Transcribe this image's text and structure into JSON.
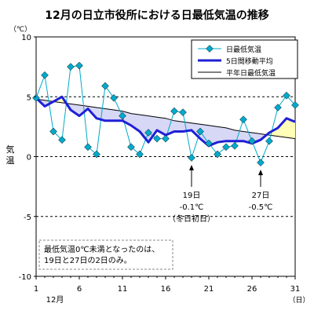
{
  "chart_data": {
    "type": "line",
    "title": "12月の日立市役所における日最低気温の推移",
    "unit_label": "（℃）",
    "ylabel": "気温",
    "xlabel_month": "12月",
    "xlabel_unit": "（日）",
    "x": [
      1,
      2,
      3,
      4,
      5,
      6,
      7,
      8,
      9,
      10,
      11,
      12,
      13,
      14,
      15,
      16,
      17,
      18,
      19,
      20,
      21,
      22,
      23,
      24,
      25,
      26,
      27,
      28,
      29,
      30,
      31
    ],
    "ylim": [
      -10,
      10
    ],
    "y_ticks": [
      10,
      5,
      0,
      -5,
      -10
    ],
    "x_ticks": [
      1,
      6,
      11,
      16,
      21,
      26,
      31
    ],
    "dashed_lines": [
      5,
      0,
      -5
    ],
    "series": [
      {
        "name": "日最低気温",
        "color": "#00aacc",
        "marker": "diamond",
        "values": [
          4.9,
          6.8,
          2.1,
          1.4,
          7.5,
          7.6,
          0.8,
          0.2,
          5.9,
          4.9,
          3.4,
          0.8,
          0.2,
          2.0,
          1.5,
          1.5,
          3.8,
          3.7,
          -0.1,
          2.1,
          1.1,
          0.2,
          0.8,
          0.9,
          3.1,
          1.3,
          -0.5,
          1.3,
          4.1,
          5.1,
          4.3
        ]
      },
      {
        "name": "5日間移動平均",
        "color": "#1f1fd6",
        "values": [
          4.9,
          4.2,
          4.6,
          5.0,
          3.9,
          3.4,
          4.0,
          3.2,
          3.0,
          3.0,
          3.0,
          2.6,
          2.1,
          1.2,
          2.2,
          1.8,
          2.1,
          2.1,
          2.2,
          1.5,
          0.9,
          1.2,
          1.3,
          1.3,
          1.3,
          1.1,
          1.4,
          2.0,
          2.4,
          3.2,
          2.9
        ]
      },
      {
        "name": "平年日最低気温",
        "color": "#000000",
        "values": [
          4.8,
          4.7,
          4.6,
          4.5,
          4.4,
          4.3,
          4.2,
          4.1,
          4.0,
          3.9,
          3.8,
          3.6,
          3.5,
          3.4,
          3.3,
          3.2,
          3.0,
          2.9,
          2.8,
          2.7,
          2.6,
          2.5,
          2.4,
          2.2,
          2.1,
          2.0,
          1.9,
          1.8,
          1.7,
          1.6,
          1.5
        ]
      }
    ],
    "fills": {
      "below_normal_color": "#d7d7f6",
      "above_normal_color": "#ffffb8"
    },
    "legend": {
      "placement": "top-right",
      "items": [
        "日最低気温",
        "5日間移動平均",
        "平年日最低気温"
      ]
    },
    "annotations": [
      {
        "day": 19,
        "value": -0.1,
        "lines": [
          "19日",
          "-0.1℃",
          "（冬日初日）"
        ]
      },
      {
        "day": 27,
        "value": -0.5,
        "lines": [
          "27日",
          "-0.5℃"
        ]
      }
    ],
    "note_lines": [
      "最低気温0℃未満となったのは、",
      "19日と27日の2日のみ。"
    ]
  }
}
